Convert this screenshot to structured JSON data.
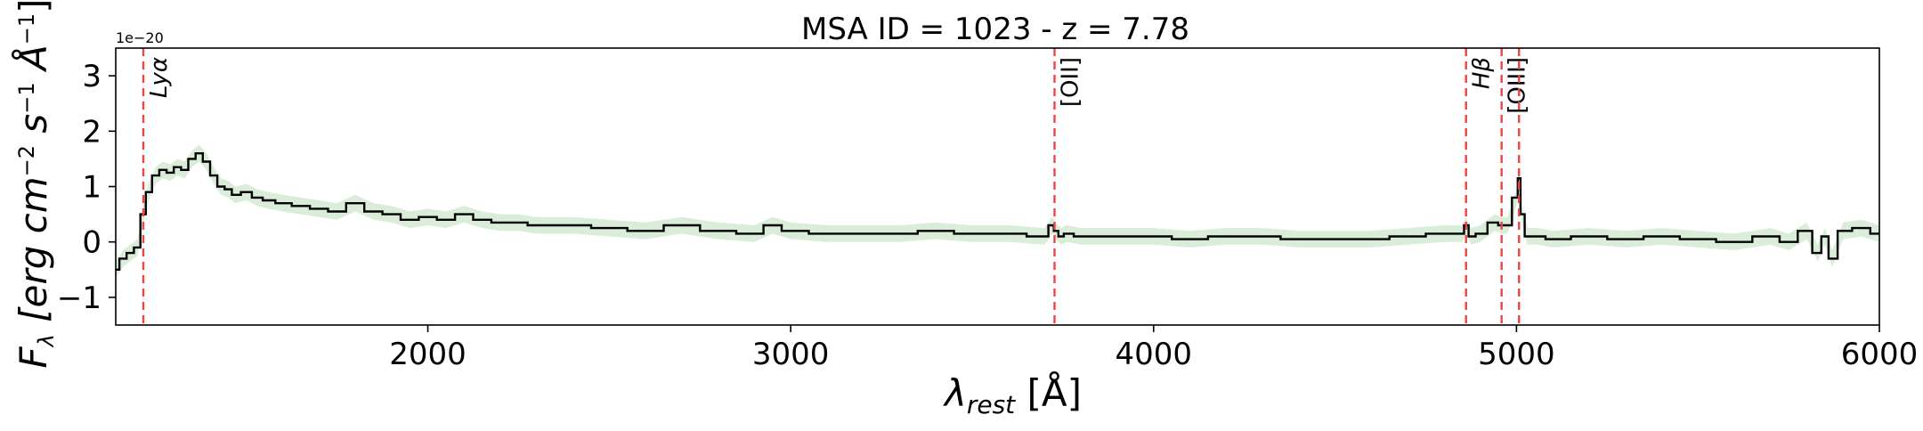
{
  "chart_data": {
    "type": "line",
    "title": "MSA ID = 1023 - z = 7.78",
    "xlabel_sym": "λ",
    "xlabel_sub": "rest",
    "xlabel_unit": " [Å]",
    "ylabel_sym": "F",
    "ylabel_sub": "λ",
    "ylabel_unit": " [erg cm",
    "ylabel_unit2": " s",
    "ylabel_unit3": " Å",
    "ylabel_exp1": "−2",
    "ylabel_exp2": "−1",
    "ylabel_exp3": "−1",
    "ylabel_close": "]",
    "y_offset_text": "1e−20",
    "xlim": [
      1140,
      6000
    ],
    "ylim": [
      -1.5,
      3.5
    ],
    "x_ticks": [
      {
        "value": 2000,
        "label": "2000"
      },
      {
        "value": 3000,
        "label": "3000"
      },
      {
        "value": 4000,
        "label": "4000"
      },
      {
        "value": 5000,
        "label": "5000"
      },
      {
        "value": 6000,
        "label": "6000"
      }
    ],
    "y_ticks": [
      {
        "value": -1,
        "label": "−1"
      },
      {
        "value": 0,
        "label": "0"
      },
      {
        "value": 1,
        "label": "1"
      },
      {
        "value": 2,
        "label": "2"
      },
      {
        "value": 3,
        "label": "3"
      }
    ],
    "emission_lines": [
      {
        "name": "Lyα",
        "wavelength": 1216
      },
      {
        "name": "[OII]",
        "wavelength": 3727
      },
      {
        "name": "Hβ",
        "wavelength": 4861
      },
      {
        "name": "[OIII]",
        "wavelength": 4959
      },
      {
        "name": "",
        "wavelength": 5007
      }
    ],
    "colors": {
      "spectrum": "#000000",
      "uncertainty_band": "#cfe8cf",
      "emission_line": "#ee4444"
    },
    "grid": false,
    "series": [
      {
        "x": [
          1140,
          1160,
          1180,
          1200,
          1216,
          1230,
          1250,
          1270,
          1290,
          1310,
          1330,
          1350,
          1370,
          1390,
          1410,
          1430,
          1450,
          1470,
          1500,
          1530,
          1560,
          1600,
          1650,
          1700,
          1750,
          1800,
          1850,
          1900,
          1950,
          2000,
          2050,
          2100,
          2150,
          2200,
          2250,
          2300,
          2400,
          2500,
          2600,
          2700,
          2800,
          2900,
          2950,
          3000,
          3100,
          3200,
          3300,
          3400,
          3500,
          3600,
          3700,
          3720,
          3730,
          3745,
          3760,
          3800,
          3900,
          4000,
          4100,
          4200,
          4300,
          4400,
          4500,
          4600,
          4700,
          4800,
          4850,
          4861,
          4875,
          4900,
          4940,
          4959,
          4975,
          5000,
          5007,
          5015,
          5030,
          5060,
          5100,
          5200,
          5300,
          5400,
          5500,
          5600,
          5700,
          5750,
          5800,
          5830,
          5850,
          5870,
          5900,
          5950,
          6000
        ],
        "y": [
          -0.5,
          -0.3,
          -0.2,
          -0.1,
          0.5,
          0.9,
          1.2,
          1.3,
          1.25,
          1.35,
          1.3,
          1.5,
          1.6,
          1.45,
          1.2,
          1.0,
          0.95,
          0.85,
          0.9,
          0.8,
          0.75,
          0.7,
          0.65,
          0.6,
          0.55,
          0.7,
          0.55,
          0.5,
          0.4,
          0.45,
          0.4,
          0.5,
          0.4,
          0.35,
          0.35,
          0.3,
          0.3,
          0.25,
          0.2,
          0.3,
          0.2,
          0.15,
          0.3,
          0.2,
          0.15,
          0.15,
          0.15,
          0.2,
          0.15,
          0.15,
          0.1,
          0.3,
          0.2,
          0.1,
          0.15,
          0.1,
          0.1,
          0.1,
          0.05,
          0.1,
          0.1,
          0.05,
          0.05,
          0.05,
          0.1,
          0.15,
          0.15,
          0.3,
          0.1,
          0.15,
          0.35,
          0.3,
          0.3,
          0.8,
          1.15,
          0.5,
          0.1,
          0.1,
          0.05,
          0.1,
          0.05,
          0.1,
          0.05,
          0.0,
          0.1,
          0.0,
          0.2,
          -0.2,
          0.1,
          -0.3,
          0.2,
          0.25,
          0.15
        ]
      }
    ]
  }
}
